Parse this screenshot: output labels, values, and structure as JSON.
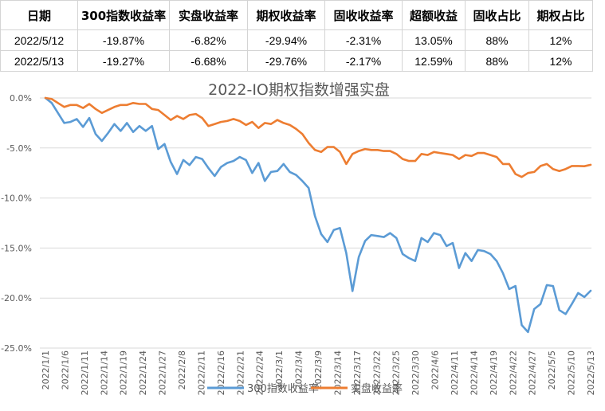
{
  "table": {
    "headers": [
      "日期",
      "300指数收益率",
      "实盘收益率",
      "期权收益率",
      "固收收益率",
      "超额收益",
      "固收占比",
      "期权占比"
    ],
    "rows": [
      [
        "2022/5/12",
        "-19.87%",
        "-6.82%",
        "-29.94%",
        "-2.31%",
        "13.05%",
        "88%",
        "12%"
      ],
      [
        "2022/5/13",
        "-19.27%",
        "-6.68%",
        "-29.76%",
        "-2.17%",
        "12.59%",
        "88%",
        "12%"
      ]
    ]
  },
  "chart_data": {
    "type": "line",
    "title": "2022-IO期权指数增强实盘",
    "xlabel": "",
    "ylabel": "",
    "ylim": [
      -25,
      0
    ],
    "yticks": [
      "0.0%",
      "-5.0%",
      "-10.0%",
      "-15.0%",
      "-20.0%",
      "-25.0%"
    ],
    "xtick_labels": [
      "2022/1/1",
      "2022/1/6",
      "2022/1/11",
      "2022/1/14",
      "2022/1/19",
      "2022/1/24",
      "2022/1/27",
      "2022/2/8",
      "2022/2/11",
      "2022/2/16",
      "2022/2/21",
      "2022/2/24",
      "2022/3/1",
      "2022/3/4",
      "2022/3/9",
      "2022/3/14",
      "2022/3/17",
      "2022/3/22",
      "2022/3/25",
      "2022/3/30",
      "2022/4/6",
      "2022/4/11",
      "2022/4/14",
      "2022/4/19",
      "2022/4/22",
      "2022/4/27",
      "2022/5/5",
      "2022/5/10",
      "2022/5/13"
    ],
    "legend": "bottom",
    "grid": true,
    "colors": [
      "#5b9bd5",
      "#ed7d31"
    ],
    "series": [
      {
        "name": "300指数收益率",
        "color": "#5b9bd5",
        "values": [
          0,
          -0.5,
          -1.5,
          -2.5,
          -2.4,
          -2.1,
          -2.9,
          -2.0,
          -3.6,
          -4.3,
          -3.5,
          -2.6,
          -3.3,
          -2.5,
          -3.4,
          -2.8,
          -3.3,
          -2.8,
          -5.1,
          -4.6,
          -6.4,
          -7.6,
          -6.2,
          -6.7,
          -5.9,
          -6.1,
          -7.0,
          -7.8,
          -6.9,
          -6.5,
          -6.3,
          -5.9,
          -6.2,
          -7.5,
          -6.5,
          -8.3,
          -7.4,
          -7.3,
          -6.6,
          -7.4,
          -7.7,
          -8.3,
          -9.0,
          -11.8,
          -13.6,
          -14.4,
          -13.2,
          -13.0,
          -15.5,
          -19.3,
          -15.9,
          -14.3,
          -13.7,
          -13.8,
          -13.9,
          -13.5,
          -14.0,
          -15.6,
          -16.0,
          -16.3,
          -14.0,
          -14.4,
          -13.5,
          -13.7,
          -14.8,
          -14.5,
          -17.0,
          -15.5,
          -16.3,
          -15.2,
          -15.3,
          -15.6,
          -16.3,
          -17.5,
          -19.1,
          -18.8,
          -22.7,
          -23.4,
          -21.1,
          -20.6,
          -18.7,
          -18.8,
          -21.2,
          -21.6,
          -20.6,
          -19.5,
          -19.9,
          -19.27
        ]
      },
      {
        "name": "实盘收益率",
        "color": "#ed7d31",
        "values": [
          0,
          -0.1,
          -0.5,
          -0.9,
          -0.7,
          -0.7,
          -1.0,
          -0.6,
          -1.1,
          -1.5,
          -1.2,
          -0.9,
          -0.7,
          -0.7,
          -0.5,
          -0.6,
          -0.6,
          -1.1,
          -1.2,
          -1.7,
          -2.2,
          -1.8,
          -2.1,
          -1.7,
          -1.6,
          -2.0,
          -2.8,
          -2.6,
          -2.4,
          -2.3,
          -2.1,
          -2.3,
          -2.7,
          -2.4,
          -3.0,
          -2.5,
          -2.6,
          -2.2,
          -2.5,
          -2.7,
          -3.1,
          -3.6,
          -4.5,
          -5.2,
          -5.4,
          -4.9,
          -4.9,
          -5.4,
          -6.6,
          -5.6,
          -5.3,
          -5.1,
          -5.2,
          -5.2,
          -5.3,
          -5.3,
          -5.6,
          -6.1,
          -6.3,
          -6.3,
          -5.6,
          -5.7,
          -5.4,
          -5.5,
          -5.6,
          -5.7,
          -6.1,
          -5.7,
          -5.8,
          -5.5,
          -5.5,
          -5.7,
          -5.9,
          -6.6,
          -6.6,
          -7.6,
          -7.9,
          -7.5,
          -7.4,
          -6.8,
          -6.6,
          -7.1,
          -7.3,
          -7.1,
          -6.8,
          -6.8,
          -6.82,
          -6.68
        ]
      }
    ]
  }
}
